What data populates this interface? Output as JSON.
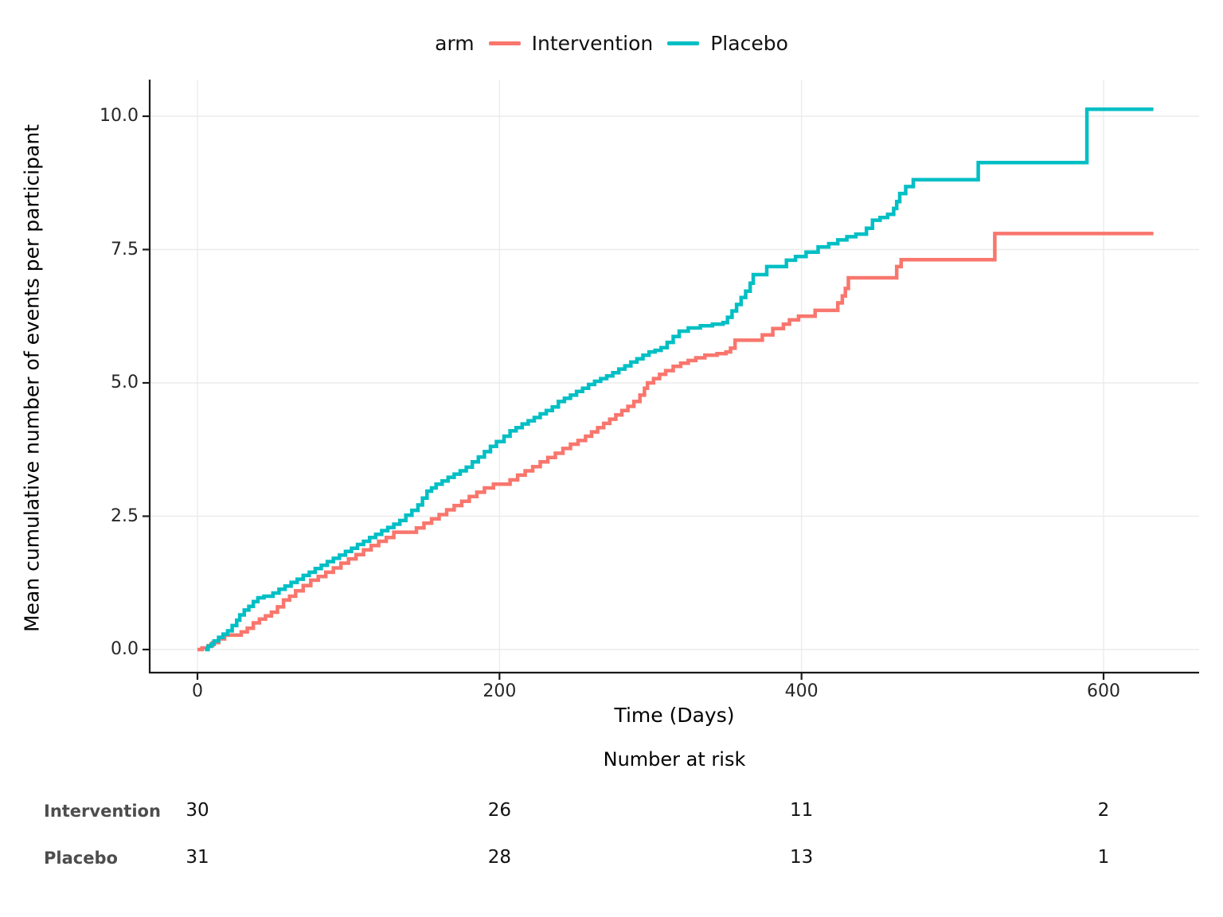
{
  "legend": {
    "title": "arm",
    "items": [
      {
        "label": "Intervention",
        "color": "#F8766D"
      },
      {
        "label": "Placebo",
        "color": "#00BFC4"
      }
    ]
  },
  "chart_data": {
    "type": "line",
    "step": "after",
    "title": "",
    "xlabel": "Time (Days)",
    "ylabel": "Mean cumulative number of events per participant",
    "xlim": [
      -32,
      664
    ],
    "ylim": [
      -0.45,
      10.7
    ],
    "x_ticks": [
      [
        0,
        "0"
      ],
      [
        200,
        "200"
      ],
      [
        400,
        "400"
      ],
      [
        600,
        "600"
      ]
    ],
    "y_ticks": [
      [
        0,
        "0.0"
      ],
      [
        2.5,
        "2.5"
      ],
      [
        5,
        "5.0"
      ],
      [
        7.5,
        "7.5"
      ],
      [
        10,
        "10.0"
      ]
    ],
    "grid": "major",
    "legend_position": "top",
    "x_end": 633,
    "series": [
      {
        "name": "Intervention",
        "color": "#F8766D",
        "points": [
          [
            0,
            0
          ],
          [
            3,
            0.03
          ],
          [
            7,
            0.07
          ],
          [
            10,
            0.13
          ],
          [
            14,
            0.2
          ],
          [
            18,
            0.27
          ],
          [
            29,
            0.33
          ],
          [
            33,
            0.4
          ],
          [
            37,
            0.5
          ],
          [
            41,
            0.57
          ],
          [
            45,
            0.63
          ],
          [
            49,
            0.7
          ],
          [
            53,
            0.8
          ],
          [
            57,
            0.93
          ],
          [
            61,
            1.0
          ],
          [
            65,
            1.1
          ],
          [
            70,
            1.2
          ],
          [
            75,
            1.3
          ],
          [
            80,
            1.37
          ],
          [
            85,
            1.45
          ],
          [
            90,
            1.53
          ],
          [
            95,
            1.62
          ],
          [
            100,
            1.7
          ],
          [
            105,
            1.78
          ],
          [
            110,
            1.87
          ],
          [
            115,
            1.95
          ],
          [
            120,
            2.03
          ],
          [
            125,
            2.1
          ],
          [
            130,
            2.2
          ],
          [
            145,
            2.28
          ],
          [
            150,
            2.37
          ],
          [
            155,
            2.45
          ],
          [
            160,
            2.53
          ],
          [
            165,
            2.62
          ],
          [
            170,
            2.7
          ],
          [
            175,
            2.78
          ],
          [
            180,
            2.87
          ],
          [
            185,
            2.95
          ],
          [
            190,
            3.03
          ],
          [
            196,
            3.1
          ],
          [
            207,
            3.18
          ],
          [
            212,
            3.27
          ],
          [
            217,
            3.35
          ],
          [
            222,
            3.43
          ],
          [
            227,
            3.52
          ],
          [
            232,
            3.6
          ],
          [
            237,
            3.68
          ],
          [
            242,
            3.77
          ],
          [
            247,
            3.85
          ],
          [
            252,
            3.92
          ],
          [
            257,
            4.0
          ],
          [
            261,
            4.08
          ],
          [
            265,
            4.16
          ],
          [
            269,
            4.24
          ],
          [
            273,
            4.32
          ],
          [
            277,
            4.4
          ],
          [
            281,
            4.48
          ],
          [
            285,
            4.56
          ],
          [
            289,
            4.65
          ],
          [
            293,
            4.77
          ],
          [
            296,
            4.9
          ],
          [
            298,
            5.0
          ],
          [
            302,
            5.08
          ],
          [
            306,
            5.16
          ],
          [
            310,
            5.23
          ],
          [
            315,
            5.31
          ],
          [
            320,
            5.37
          ],
          [
            325,
            5.42
          ],
          [
            330,
            5.47
          ],
          [
            336,
            5.52
          ],
          [
            344,
            5.55
          ],
          [
            350,
            5.58
          ],
          [
            353,
            5.65
          ],
          [
            356,
            5.8
          ],
          [
            374,
            5.9
          ],
          [
            381,
            6.02
          ],
          [
            388,
            6.1
          ],
          [
            392,
            6.18
          ],
          [
            398,
            6.25
          ],
          [
            409,
            6.36
          ],
          [
            424,
            6.5
          ],
          [
            427,
            6.63
          ],
          [
            429,
            6.77
          ],
          [
            431,
            6.97
          ],
          [
            463,
            7.18
          ],
          [
            466,
            7.31
          ],
          [
            528,
            7.8
          ]
        ]
      },
      {
        "name": "Placebo",
        "color": "#00BFC4",
        "points": [
          [
            5,
            0
          ],
          [
            7,
            0.06
          ],
          [
            9,
            0.1
          ],
          [
            11,
            0.16
          ],
          [
            14,
            0.23
          ],
          [
            17,
            0.29
          ],
          [
            20,
            0.35
          ],
          [
            23,
            0.45
          ],
          [
            26,
            0.55
          ],
          [
            28,
            0.65
          ],
          [
            31,
            0.74
          ],
          [
            34,
            0.81
          ],
          [
            37,
            0.9
          ],
          [
            40,
            0.97
          ],
          [
            44,
            1.0
          ],
          [
            50,
            1.06
          ],
          [
            54,
            1.13
          ],
          [
            58,
            1.19
          ],
          [
            62,
            1.26
          ],
          [
            66,
            1.32
          ],
          [
            70,
            1.39
          ],
          [
            74,
            1.45
          ],
          [
            78,
            1.52
          ],
          [
            82,
            1.58
          ],
          [
            86,
            1.65
          ],
          [
            90,
            1.71
          ],
          [
            94,
            1.77
          ],
          [
            98,
            1.84
          ],
          [
            102,
            1.9
          ],
          [
            106,
            1.97
          ],
          [
            110,
            2.03
          ],
          [
            114,
            2.1
          ],
          [
            118,
            2.16
          ],
          [
            122,
            2.23
          ],
          [
            126,
            2.29
          ],
          [
            130,
            2.35
          ],
          [
            134,
            2.42
          ],
          [
            138,
            2.52
          ],
          [
            142,
            2.61
          ],
          [
            146,
            2.71
          ],
          [
            149,
            2.84
          ],
          [
            152,
            2.97
          ],
          [
            155,
            3.03
          ],
          [
            158,
            3.1
          ],
          [
            162,
            3.16
          ],
          [
            166,
            3.23
          ],
          [
            170,
            3.29
          ],
          [
            174,
            3.35
          ],
          [
            178,
            3.42
          ],
          [
            182,
            3.52
          ],
          [
            186,
            3.61
          ],
          [
            190,
            3.71
          ],
          [
            194,
            3.81
          ],
          [
            198,
            3.9
          ],
          [
            203,
            4.0
          ],
          [
            207,
            4.1
          ],
          [
            211,
            4.16
          ],
          [
            215,
            4.23
          ],
          [
            219,
            4.29
          ],
          [
            223,
            4.35
          ],
          [
            227,
            4.42
          ],
          [
            231,
            4.48
          ],
          [
            235,
            4.55
          ],
          [
            239,
            4.65
          ],
          [
            243,
            4.71
          ],
          [
            247,
            4.77
          ],
          [
            251,
            4.84
          ],
          [
            255,
            4.9
          ],
          [
            259,
            4.97
          ],
          [
            263,
            5.03
          ],
          [
            267,
            5.08
          ],
          [
            271,
            5.13
          ],
          [
            275,
            5.19
          ],
          [
            279,
            5.26
          ],
          [
            283,
            5.32
          ],
          [
            287,
            5.39
          ],
          [
            291,
            5.45
          ],
          [
            295,
            5.52
          ],
          [
            299,
            5.58
          ],
          [
            303,
            5.61
          ],
          [
            307,
            5.66
          ],
          [
            311,
            5.76
          ],
          [
            315,
            5.87
          ],
          [
            319,
            5.97
          ],
          [
            325,
            6.03
          ],
          [
            333,
            6.07
          ],
          [
            341,
            6.1
          ],
          [
            348,
            6.13
          ],
          [
            351,
            6.23
          ],
          [
            354,
            6.35
          ],
          [
            357,
            6.47
          ],
          [
            360,
            6.6
          ],
          [
            363,
            6.72
          ],
          [
            366,
            6.87
          ],
          [
            368,
            7.03
          ],
          [
            377,
            7.18
          ],
          [
            390,
            7.3
          ],
          [
            396,
            7.37
          ],
          [
            403,
            7.45
          ],
          [
            411,
            7.55
          ],
          [
            418,
            7.61
          ],
          [
            424,
            7.68
          ],
          [
            430,
            7.74
          ],
          [
            436,
            7.79
          ],
          [
            443,
            7.9
          ],
          [
            447,
            8.05
          ],
          [
            452,
            8.1
          ],
          [
            457,
            8.16
          ],
          [
            461,
            8.27
          ],
          [
            463,
            8.4
          ],
          [
            465,
            8.55
          ],
          [
            469,
            8.68
          ],
          [
            474,
            8.81
          ],
          [
            517,
            9.13
          ],
          [
            589,
            10.13
          ]
        ]
      }
    ]
  },
  "risk_table": {
    "title": "Number at risk",
    "time_points": [
      0,
      200,
      400,
      600
    ],
    "rows": [
      {
        "label": "Intervention",
        "values": [
          "30",
          "26",
          "11",
          "2"
        ]
      },
      {
        "label": "Placebo",
        "values": [
          "31",
          "28",
          "13",
          "1"
        ]
      }
    ]
  },
  "style": {
    "grid_color": "#EBEBEB",
    "axis_color": "#1a1a1a",
    "background": "#ffffff"
  }
}
